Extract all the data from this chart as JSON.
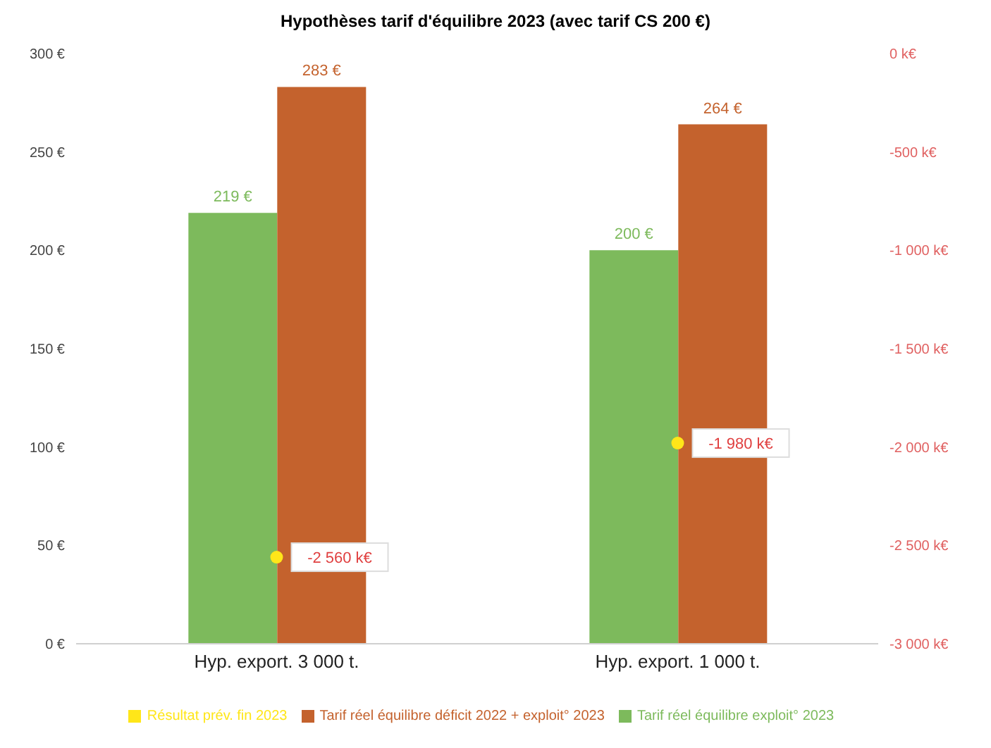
{
  "chart_data": {
    "type": "bar",
    "title": "Hypothèses tarif d'équilibre 2023 (avec tarif CS 200 €)",
    "categories": [
      "Hyp. export. 3 000 t.",
      "Hyp. export. 1 000 t."
    ],
    "series": [
      {
        "name": "Tarif réel équilibre exploit° 2023",
        "color": "#7dba5c",
        "values": [
          219,
          200
        ],
        "value_labels": [
          "219 €",
          "200 €"
        ]
      },
      {
        "name": "Tarif réel équilibre déficit 2022 + exploit° 2023",
        "color": "#c4622d",
        "values": [
          283,
          264
        ],
        "value_labels": [
          "283 €",
          "264 €"
        ]
      },
      {
        "name": "Résultat prév. fin 2023",
        "type": "scatter",
        "axis": "y2",
        "color": "#ffe619",
        "values": [
          -2560,
          -1980
        ],
        "value_labels": [
          "-2 560 k€",
          "-1 980 k€"
        ]
      }
    ],
    "ylim": [
      0,
      300
    ],
    "yticks": [
      {
        "value": 0,
        "label": "0 €"
      },
      {
        "value": 50,
        "label": "50 €"
      },
      {
        "value": 100,
        "label": "100 €"
      },
      {
        "value": 150,
        "label": "150 €"
      },
      {
        "value": 200,
        "label": "200 €"
      },
      {
        "value": 250,
        "label": "250 €"
      },
      {
        "value": 300,
        "label": "300 €"
      }
    ],
    "y2lim": [
      -3000,
      0
    ],
    "y2ticks": [
      {
        "value": -3000,
        "label": "-3 000 k€"
      },
      {
        "value": -2500,
        "label": "-2 500 k€"
      },
      {
        "value": -2000,
        "label": "-2 000 k€"
      },
      {
        "value": -1500,
        "label": "-1 500 k€"
      },
      {
        "value": -1000,
        "label": "-1 000 k€"
      },
      {
        "value": -500,
        "label": "-500 k€"
      },
      {
        "value": 0,
        "label": "0 k€"
      }
    ],
    "legend": "bottom",
    "grid": false,
    "marker": "circle"
  }
}
